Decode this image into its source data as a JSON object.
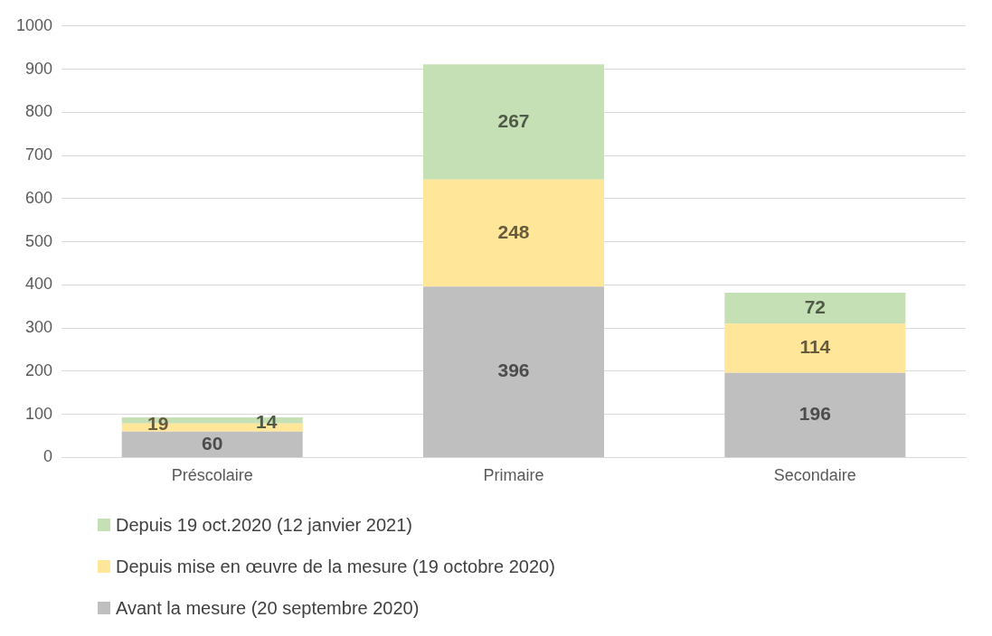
{
  "chart_data": {
    "type": "bar",
    "stacked": true,
    "categories": [
      "Préscolaire",
      "Primaire",
      "Secondaire"
    ],
    "series": [
      {
        "name": "Avant la mesure (20 septembre 2020)",
        "color": "#bfbfbf",
        "values": [
          60,
          396,
          196
        ]
      },
      {
        "name": "Depuis mise en œuvre de la mesure (19 octobre 2020)",
        "color": "#ffe699",
        "values": [
          19,
          248,
          114
        ]
      },
      {
        "name": "Depuis 19 oct.2020 (12 janvier 2021)",
        "color": "#c5e0b4",
        "values": [
          14,
          267,
          72
        ]
      }
    ],
    "ylim": [
      0,
      1000
    ],
    "yticks": [
      0,
      100,
      200,
      300,
      400,
      500,
      600,
      700,
      800,
      900,
      1000
    ],
    "grid": "y",
    "legend": "bottom",
    "data_labels": true
  }
}
